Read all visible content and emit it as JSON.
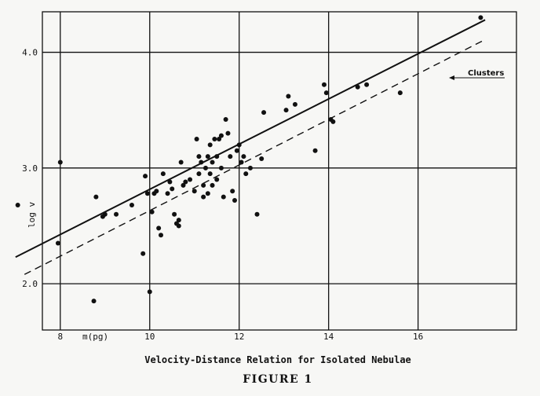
{
  "chart_data": {
    "type": "scatter",
    "title": "Velocity-Distance Relation for Isolated Nebulae",
    "subtitle": "FIGURE 1",
    "xlabel": "m(pg)",
    "ylabel": "log v",
    "xlim": [
      7.6,
      18.2
    ],
    "ylim": [
      1.6,
      4.35
    ],
    "x_ticks": [
      8,
      10,
      12,
      14,
      16
    ],
    "y_ticks": [
      2.0,
      3.0,
      4.0
    ],
    "y_tick_labels": [
      "2.0",
      "3.0",
      "4.0"
    ],
    "grid": true,
    "annotation": "Clusters",
    "series": [
      {
        "kind": "points",
        "x": [
          7.05,
          7.95,
          8.0,
          8.75,
          8.8,
          8.95,
          9.0,
          9.25,
          9.6,
          9.85,
          9.9,
          9.95,
          10.0,
          10.05,
          10.1,
          10.15,
          10.2,
          10.25,
          10.3,
          10.4,
          10.45,
          10.5,
          10.55,
          10.6,
          10.65,
          10.65,
          10.7,
          10.75,
          10.8,
          10.9,
          11.0,
          11.05,
          11.1,
          11.1,
          11.15,
          11.2,
          11.2,
          11.25,
          11.3,
          11.3,
          11.35,
          11.35,
          11.4,
          11.4,
          11.45,
          11.5,
          11.5,
          11.55,
          11.6,
          11.6,
          11.65,
          11.7,
          11.75,
          11.8,
          11.85,
          11.9,
          11.95,
          12.0,
          12.05,
          12.1,
          12.15,
          12.25,
          12.4,
          12.5,
          12.55,
          13.05,
          13.1,
          13.25,
          13.7,
          13.9,
          13.95,
          14.05,
          14.1,
          14.65,
          14.85,
          15.6,
          17.4
        ],
        "y": [
          2.68,
          2.35,
          3.05,
          1.85,
          2.75,
          2.58,
          2.6,
          2.6,
          2.68,
          2.26,
          2.93,
          2.78,
          1.93,
          2.62,
          2.78,
          2.8,
          2.48,
          2.42,
          2.95,
          2.78,
          2.88,
          2.82,
          2.6,
          2.52,
          2.55,
          2.5,
          3.05,
          2.85,
          2.88,
          2.9,
          2.8,
          3.25,
          3.1,
          2.95,
          3.05,
          2.85,
          2.75,
          3.0,
          2.78,
          3.1,
          3.2,
          2.95,
          3.05,
          2.85,
          3.25,
          3.1,
          2.9,
          3.25,
          3.28,
          3.0,
          2.75,
          3.42,
          3.3,
          3.1,
          2.8,
          2.72,
          3.15,
          3.2,
          3.05,
          3.1,
          2.95,
          3.0,
          2.6,
          3.08,
          3.48,
          3.5,
          3.62,
          3.55,
          3.15,
          3.72,
          3.65,
          3.42,
          3.4,
          3.7,
          3.72,
          3.65,
          4.3
        ]
      },
      {
        "kind": "solid-line",
        "x": [
          7.0,
          17.5
        ],
        "y": [
          2.23,
          4.28
        ]
      },
      {
        "kind": "dashed-line",
        "x": [
          7.2,
          17.5
        ],
        "y": [
          2.08,
          4.11
        ]
      }
    ]
  }
}
